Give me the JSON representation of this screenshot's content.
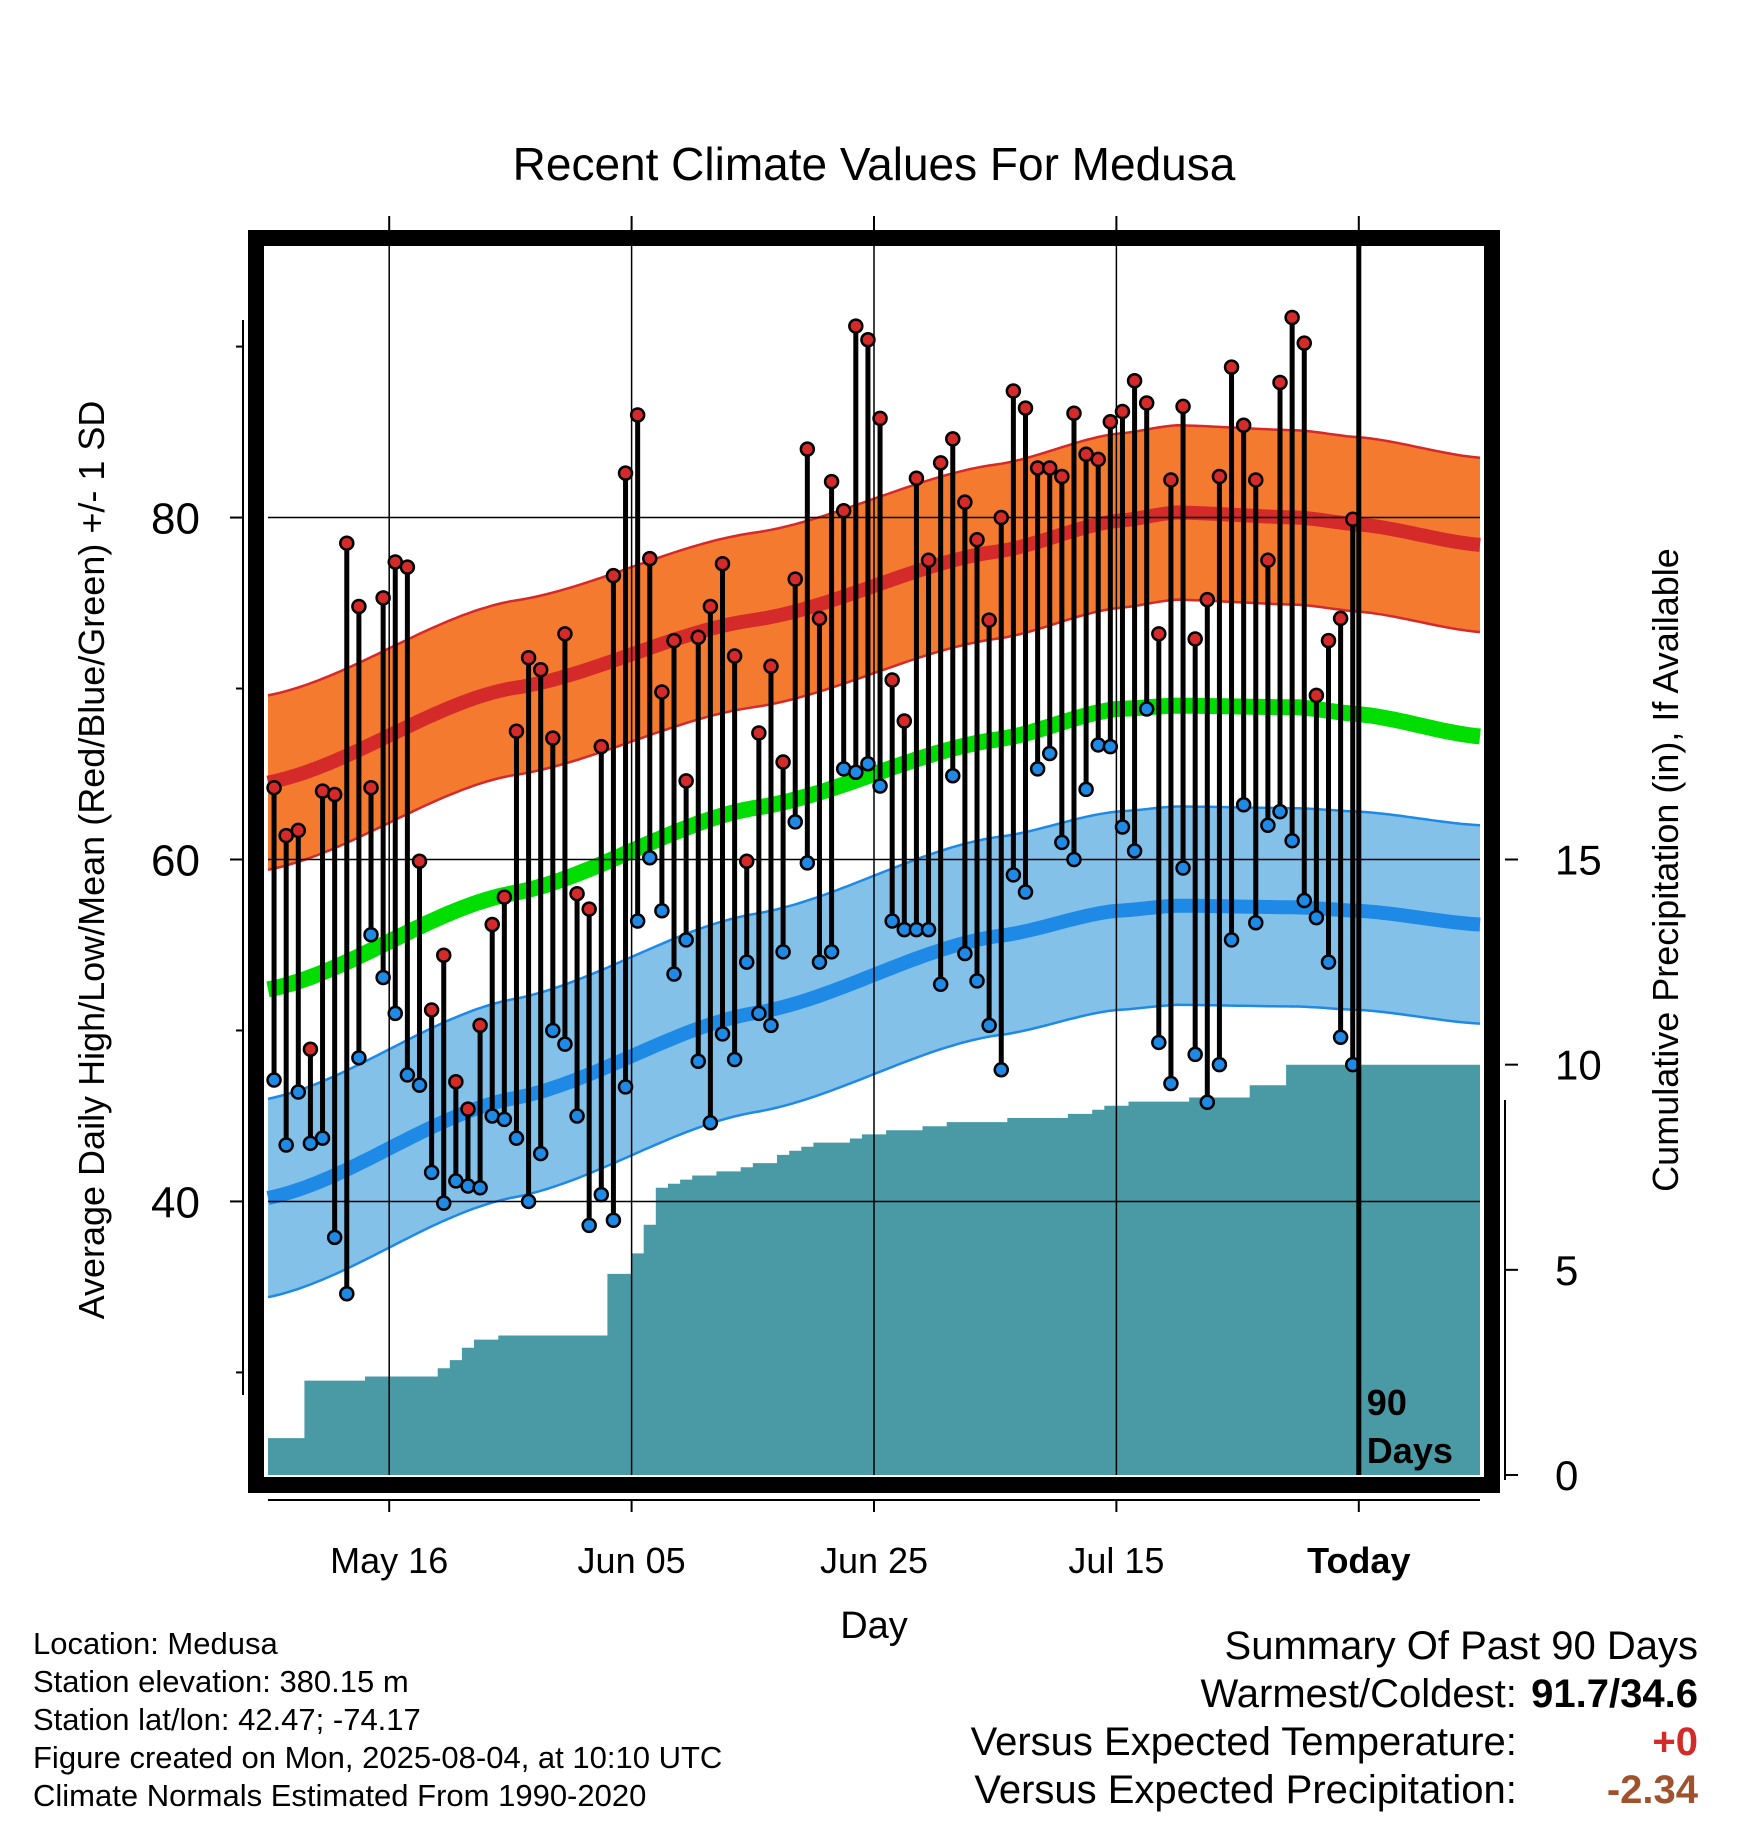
{
  "chart_data": {
    "type": "line",
    "title": "Recent Climate Values For Medusa",
    "xlabel": "Day",
    "ylabel": "Average Daily High/Low/Mean (Red/Blue/Green) +/- 1 SD",
    "y2label": "Cumulative Precipitation (in), If Available",
    "xtick_labels": [
      "May 16",
      "Jun 05",
      "Jun 25",
      "Jul 15",
      "Today"
    ],
    "ylim": [
      24,
      96
    ],
    "yticks": [
      40,
      60,
      80
    ],
    "y2lim": [
      0,
      30
    ],
    "y2ticks": [
      0,
      5,
      10,
      15
    ],
    "days": 100,
    "today_index": 90,
    "today_marker_label": "90 Days",
    "normals": {
      "high_mean": {
        "color": "#d42a2a",
        "days": [
          0,
          20,
          40,
          60,
          70,
          75,
          85,
          90,
          100
        ],
        "values": [
          64.5,
          70,
          74,
          78,
          79.8,
          80.3,
          80,
          79.6,
          78.4
        ]
      },
      "high_sd": 5.1,
      "low_mean": {
        "color": "#1e8ae6",
        "days": [
          0,
          20,
          40,
          60,
          70,
          75,
          85,
          90,
          100
        ],
        "values": [
          40.2,
          46,
          51,
          55.5,
          57,
          57.3,
          57.2,
          57,
          56.2
        ]
      },
      "low_sd": 5.8,
      "avg_mean": {
        "color": "#00dd00",
        "days": [
          0,
          20,
          40,
          60,
          70,
          75,
          85,
          90,
          100
        ],
        "values": [
          52.4,
          58,
          63,
          67,
          68.8,
          69,
          68.9,
          68.5,
          67.2
        ]
      },
      "high_band_color": "#f47a30",
      "low_band_color": "#83c1e8"
    },
    "daily_highs": [
      64.2,
      61.4,
      61.7,
      48.9,
      64,
      63.8,
      78.5,
      74.8,
      64.2,
      75.3,
      77.4,
      77.1,
      59.9,
      51.2,
      54.4,
      47,
      45.4,
      50.3,
      56.2,
      57.8,
      67.5,
      71.8,
      71.1,
      67.1,
      73.2,
      58,
      57.1,
      66.6,
      76.6,
      82.6,
      86,
      77.6,
      69.8,
      72.8,
      64.6,
      73,
      74.8,
      77.3,
      71.9,
      59.9,
      67.4,
      71.3,
      65.7,
      76.4,
      84,
      74.1,
      82.1,
      80.4,
      91.2,
      90.4,
      85.8,
      70.5,
      68.1,
      82.3,
      77.5,
      83.2,
      84.6,
      80.9,
      78.7,
      74,
      80,
      87.4,
      86.4,
      82.9,
      82.9,
      82.4,
      86.1,
      83.7,
      83.4,
      85.6,
      86.2,
      88,
      86.7,
      73.2,
      82.2,
      86.5,
      72.9,
      75.2,
      82.4,
      88.8,
      85.4,
      82.2,
      77.5,
      87.9,
      91.7,
      90.2,
      69.6,
      72.8,
      74.1,
      79.9
    ],
    "daily_lows": [
      47.1,
      43.3,
      46.4,
      43.4,
      43.7,
      37.9,
      34.6,
      48.4,
      55.6,
      53.1,
      51,
      47.4,
      46.8,
      41.7,
      39.9,
      41.2,
      40.9,
      40.8,
      45,
      44.8,
      43.7,
      40,
      42.8,
      50,
      49.2,
      45,
      38.6,
      40.4,
      38.9,
      46.7,
      56.4,
      60.1,
      57,
      53.3,
      55.3,
      48.2,
      44.6,
      49.8,
      48.3,
      54,
      51,
      50.3,
      54.6,
      62.2,
      59.8,
      54,
      54.6,
      65.3,
      65.1,
      65.6,
      64.3,
      56.4,
      55.9,
      55.9,
      55.9,
      52.7,
      64.9,
      54.5,
      52.9,
      50.3,
      47.7,
      59.1,
      58.1,
      65.3,
      66.2,
      61,
      60,
      64.1,
      66.7,
      66.6,
      61.9,
      60.5,
      68.8,
      49.3,
      46.9,
      59.5,
      48.6,
      45.8,
      48,
      55.3,
      63.2,
      56.3,
      62,
      62.8,
      61.1,
      57.6,
      56.6,
      54,
      49.6,
      48
    ],
    "precip_cumulative": [
      0.9,
      0.9,
      0.9,
      2.3,
      2.3,
      2.3,
      2.3,
      2.3,
      2.4,
      2.4,
      2.4,
      2.4,
      2.4,
      2.4,
      2.6,
      2.8,
      3.1,
      3.3,
      3.3,
      3.4,
      3.4,
      3.4,
      3.4,
      3.4,
      3.4,
      3.4,
      3.4,
      3.4,
      4.9,
      4.9,
      5.4,
      6.1,
      7.0,
      7.1,
      7.2,
      7.3,
      7.3,
      7.4,
      7.4,
      7.5,
      7.6,
      7.6,
      7.8,
      7.9,
      8.0,
      8.1,
      8.1,
      8.1,
      8.2,
      8.3,
      8.3,
      8.4,
      8.4,
      8.4,
      8.5,
      8.5,
      8.6,
      8.6,
      8.6,
      8.6,
      8.6,
      8.7,
      8.7,
      8.7,
      8.7,
      8.7,
      8.8,
      8.8,
      8.9,
      9.0,
      9.0,
      9.1,
      9.1,
      9.1,
      9.1,
      9.1,
      9.2,
      9.2,
      9.2,
      9.2,
      9.2,
      9.5,
      9.5,
      9.5,
      10.0,
      10.0,
      10.0,
      10.0,
      10.0,
      10.0,
      10.0,
      10.0,
      10.0,
      10.0,
      10.0,
      10.0,
      10.0,
      10.0,
      10.0,
      10.0
    ],
    "precip_color": "#4a9aa6"
  },
  "info": {
    "location": "Location: Medusa",
    "elevation": "Station elevation: 380.15 m",
    "latlon": "Station lat/lon: 42.47; -74.17",
    "created": "Figure created on Mon, 2025-08-04, at 10:10 UTC",
    "normals": "Climate Normals Estimated From 1990-2020"
  },
  "summary": {
    "title": "Summary Of Past 90 Days",
    "warmest_label": "Warmest/Coldest:",
    "warmest_value": "91.7/34.6",
    "temp_label": "Versus Expected Temperature:",
    "temp_value": "+0",
    "temp_color": "#d42a2a",
    "precip_label": "Versus Expected Precipitation:",
    "precip_value": "-2.34",
    "precip_color": "#a0522d"
  }
}
